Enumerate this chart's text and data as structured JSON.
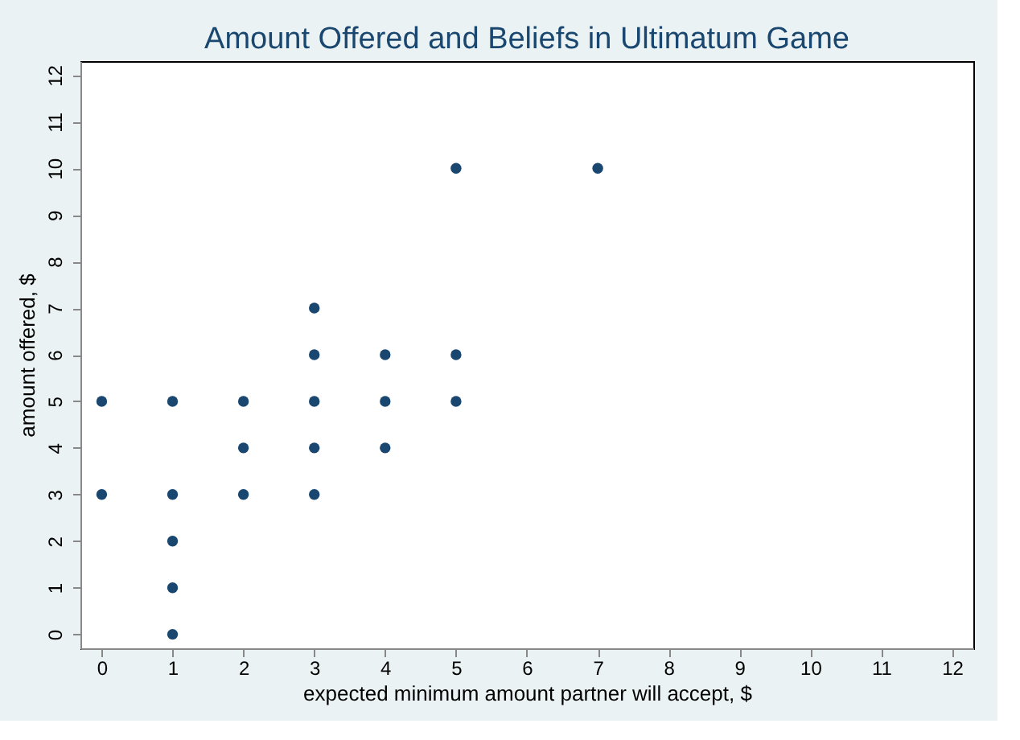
{
  "chart_data": {
    "type": "scatter",
    "title": "Amount Offered and Beliefs in Ultimatum Game",
    "xlabel": "expected minimum amount partner will accept, $",
    "ylabel": "amount offered, $",
    "x": [
      0,
      0,
      1,
      1,
      1,
      1,
      1,
      2,
      2,
      2,
      3,
      3,
      3,
      3,
      3,
      4,
      4,
      4,
      5,
      5,
      5,
      7
    ],
    "series": [
      {
        "color": "#1a476f",
        "values": [
          3,
          5,
          0,
          1,
          2,
          3,
          5,
          3,
          4,
          5,
          3,
          4,
          5,
          6,
          7,
          4,
          5,
          6,
          5,
          6,
          10,
          10
        ]
      }
    ],
    "xlim": [
      -0.3,
      12.3
    ],
    "ylim": [
      -0.3,
      12.3
    ],
    "xticks": [
      0,
      1,
      2,
      3,
      4,
      5,
      6,
      7,
      8,
      9,
      10,
      11,
      12
    ],
    "yticks": [
      0,
      1,
      2,
      3,
      4,
      5,
      6,
      7,
      8,
      9,
      10,
      11,
      12
    ],
    "grid": false,
    "legend": false,
    "marker": "circle"
  }
}
